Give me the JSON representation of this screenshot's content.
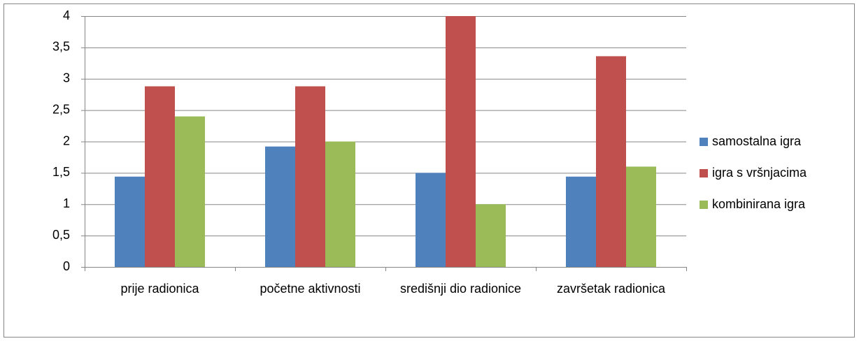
{
  "chart_data": {
    "type": "bar",
    "categories": [
      "prije radionica",
      "početne aktivnosti",
      "središnji dio radionice",
      "završetak radionica"
    ],
    "series": [
      {
        "name": "samostalna igra",
        "color": "#4f81bd",
        "values": [
          1.44,
          1.92,
          1.5,
          1.44
        ]
      },
      {
        "name": "igra s vršnjacima",
        "color": "#c0504d",
        "values": [
          2.88,
          2.88,
          4,
          3.36
        ]
      },
      {
        "name": "kombinirana igra",
        "color": "#9bbb59",
        "values": [
          2.4,
          2,
          1,
          1.6
        ]
      }
    ],
    "ylim": [
      0,
      4
    ],
    "yticks": [
      0,
      {
        "value": 0.5,
        "label": "0,5"
      },
      1,
      {
        "value": 1.5,
        "label": "1,5"
      },
      2,
      {
        "value": 2.5,
        "label": "2,5"
      },
      3,
      {
        "value": 3.5,
        "label": "3,5"
      },
      4
    ],
    "grid": true,
    "legend": "right"
  }
}
